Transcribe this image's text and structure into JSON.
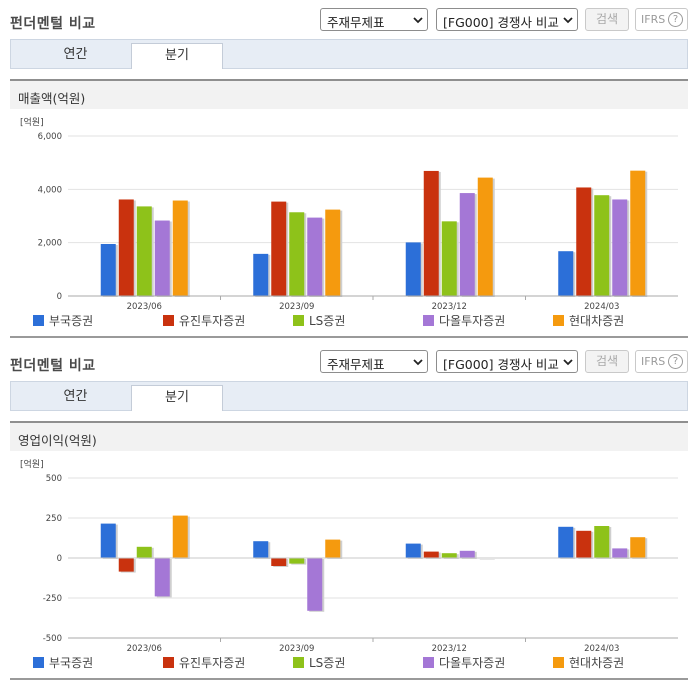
{
  "panels": [
    {
      "title": "펀더멘털 비교",
      "select1": "주재무제표",
      "select2": "[FG000] 경쟁사 비교",
      "search_label": "검색",
      "ifrs_label": "IFRS",
      "tabs": [
        "연간",
        "분기"
      ],
      "active_tab": "분기",
      "section_title": "매출액(억원)",
      "chart_data": {
        "type": "bar",
        "unit_label": "[억원]",
        "categories": [
          "2023/06",
          "2023/09",
          "2023/12",
          "2024/03"
        ],
        "ylim": [
          0,
          6000
        ],
        "yticks": [
          0,
          2000,
          4000,
          6000
        ],
        "ytick_labels": [
          "0",
          "2,000",
          "4,000",
          "6,000"
        ],
        "grid": true,
        "legend_position": "bottom",
        "series": [
          {
            "name": "부국증권",
            "color": "#2c6fd8",
            "values": [
              1950,
              1580,
              2010,
              1680
            ]
          },
          {
            "name": "유진투자증권",
            "color": "#c9320e",
            "values": [
              3620,
              3540,
              4690,
              4070
            ]
          },
          {
            "name": "LS증권",
            "color": "#8ec21a",
            "values": [
              3360,
              3140,
              2800,
              3780
            ]
          },
          {
            "name": "다올투자증권",
            "color": "#a477d6",
            "values": [
              2830,
              2940,
              3860,
              3620
            ]
          },
          {
            "name": "현대차증권",
            "color": "#f59a0e",
            "values": [
              3580,
              3240,
              4440,
              4700
            ]
          }
        ]
      }
    },
    {
      "title": "펀더멘털 비교",
      "select1": "주재무제표",
      "select2": "[FG000] 경쟁사 비교",
      "search_label": "검색",
      "ifrs_label": "IFRS",
      "tabs": [
        "연간",
        "분기"
      ],
      "active_tab": "분기",
      "section_title": "영업이익(억원)",
      "chart_data": {
        "type": "bar",
        "unit_label": "[억원]",
        "categories": [
          "2023/06",
          "2023/09",
          "2023/12",
          "2024/03"
        ],
        "ylim": [
          -500,
          500
        ],
        "yticks": [
          -500,
          -250,
          0,
          250,
          500
        ],
        "ytick_labels": [
          "-500",
          "-250",
          "0",
          "250",
          "500"
        ],
        "grid": true,
        "legend_position": "bottom",
        "series": [
          {
            "name": "부국증권",
            "color": "#2c6fd8",
            "values": [
              215,
              105,
              90,
              195
            ]
          },
          {
            "name": "유진투자증권",
            "color": "#c9320e",
            "values": [
              -85,
              -50,
              40,
              170
            ]
          },
          {
            "name": "LS증권",
            "color": "#8ec21a",
            "values": [
              70,
              -35,
              30,
              200
            ]
          },
          {
            "name": "다올투자증권",
            "color": "#a477d6",
            "values": [
              -240,
              -330,
              45,
              60
            ]
          },
          {
            "name": "현대차증권",
            "color": "#f59a0e",
            "values": [
              265,
              115,
              0,
              130
            ]
          }
        ]
      }
    }
  ]
}
